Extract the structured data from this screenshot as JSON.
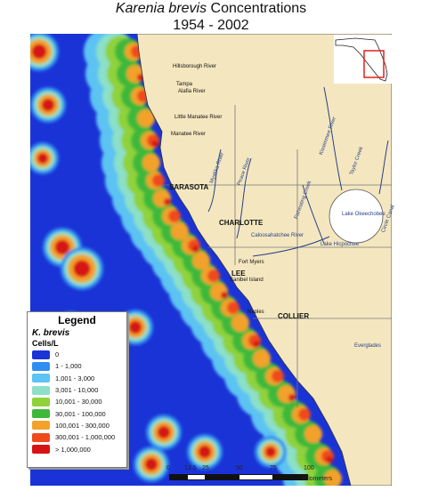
{
  "title": {
    "species": "Karenia brevis",
    "rest": " Concentrations",
    "years": "1954 - 2002"
  },
  "legend": {
    "heading": "Legend",
    "species": "K. brevis",
    "unit": "Cells/L",
    "classes": [
      {
        "label": "0",
        "color": "#1a33d6"
      },
      {
        "label": "1 - 1,000",
        "color": "#2f8ff0"
      },
      {
        "label": "1,001 - 3,000",
        "color": "#5cc3f2"
      },
      {
        "label": "3,001 - 10,000",
        "color": "#8ce0c8"
      },
      {
        "label": "10,001 - 30,000",
        "color": "#8fd23b"
      },
      {
        "label": "30,001 - 100,000",
        "color": "#3eb83a"
      },
      {
        "label": "100,001 - 300,000",
        "color": "#f2a22a"
      },
      {
        "label": "300,001 - 1,000,000",
        "color": "#ef4a1c"
      },
      {
        "label": "> 1,000,000",
        "color": "#d61414"
      }
    ]
  },
  "places": {
    "sarasota": "SARASOTA",
    "charlotte": "CHARLOTTE",
    "lee": "LEE",
    "collier": "COLLIER",
    "fort_myers": "Fort Myers",
    "sanibel": "Sanibel Island",
    "naples": "Naples",
    "tampa": "Tampa",
    "lake": "Lake Okeechobee",
    "hicpochee": "Lake Hicpochee",
    "caloosahatchee": "Caloosahatchee River",
    "peace": "Peace River",
    "myakka": "Myakka River",
    "fisheating": "Fisheating Creek",
    "kissimmee": "Kissimmee River",
    "taylor": "Taylor Creek",
    "everglades": "Everglades",
    "hillsborough": "Hillsborough River",
    "alafia": "Alafia River",
    "littlemanatee": "Little Manatee River",
    "manatee": "Manatee River",
    "circle": "Circle Canal"
  },
  "scale": {
    "ticks": [
      "0",
      "12.5",
      "25",
      "50",
      "75",
      "100"
    ],
    "unit": "Kilometers"
  },
  "colors": {
    "land": "#f4e7bf",
    "sea": "#1a33d6"
  }
}
